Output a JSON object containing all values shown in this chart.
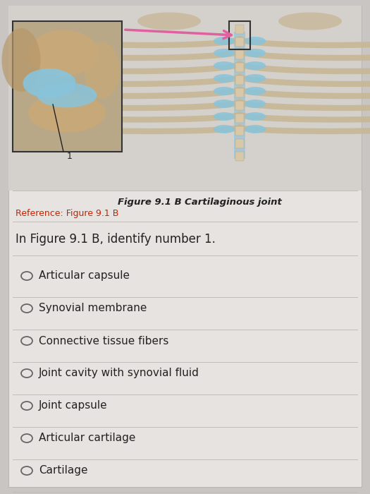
{
  "bg_color": "#c8c5c2",
  "card_color": "#e6e3e0",
  "title_caption_bold": "Figure 9.1 B ",
  "title_caption_normal": "Cartilaginous joint",
  "reference_text": "Reference: Figure 9.1 B",
  "reference_color": "#cc2200",
  "question_text": "In Figure 9.1 B, identify number 1.",
  "options": [
    "Articular capsule",
    "Synovial membrane",
    "Connective tissue fibers",
    "Joint cavity with synovial fluid",
    "Joint capsule",
    "Articular cartilage",
    "Cartilage"
  ],
  "question_fontsize": 12,
  "option_fontsize": 11,
  "caption_fontsize": 9.5,
  "ref_fontsize": 9,
  "separator_color": "#c0bcb8",
  "circle_color": "#666666",
  "text_color": "#222222",
  "img_bg_color": "#d4d0cc",
  "bone_color": "#c8b898",
  "bone_light": "#d8c8a8",
  "cartilage_color": "#88c4dc",
  "inset_bg": "#b8a888",
  "arrow_color": "#e060a0"
}
